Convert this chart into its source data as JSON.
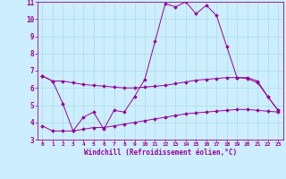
{
  "xlabel": "Windchill (Refroidissement éolien,°C)",
  "background_color": "#cceeff",
  "grid_color": "#aadddd",
  "line_color": "#990099",
  "xlim": [
    -0.5,
    23.5
  ],
  "ylim": [
    3,
    11
  ],
  "xticks": [
    0,
    1,
    2,
    3,
    4,
    5,
    6,
    7,
    8,
    9,
    10,
    11,
    12,
    13,
    14,
    15,
    16,
    17,
    18,
    19,
    20,
    21,
    22,
    23
  ],
  "yticks": [
    3,
    4,
    5,
    6,
    7,
    8,
    9,
    10,
    11
  ],
  "series1_x": [
    0,
    1,
    2,
    3,
    4,
    5,
    6,
    7,
    8,
    9,
    10,
    11,
    12,
    13,
    14,
    15,
    16,
    17,
    18,
    19,
    20,
    21,
    22,
    23
  ],
  "series1_y": [
    6.7,
    6.4,
    6.4,
    6.3,
    6.2,
    6.15,
    6.1,
    6.05,
    6.0,
    6.0,
    6.05,
    6.1,
    6.15,
    6.25,
    6.35,
    6.45,
    6.5,
    6.55,
    6.6,
    6.6,
    6.55,
    6.3,
    5.5,
    4.7
  ],
  "series2_x": [
    0,
    1,
    2,
    3,
    4,
    5,
    6,
    7,
    8,
    9,
    10,
    11,
    12,
    13,
    14,
    15,
    16,
    17,
    18,
    19,
    20,
    21,
    22,
    23
  ],
  "series2_y": [
    6.7,
    6.4,
    5.1,
    3.5,
    4.3,
    4.6,
    3.6,
    4.7,
    4.6,
    5.5,
    6.5,
    8.7,
    10.9,
    10.7,
    11.0,
    10.3,
    10.8,
    10.2,
    8.4,
    6.6,
    6.6,
    6.4,
    5.5,
    4.7
  ],
  "series3_x": [
    0,
    1,
    2,
    3,
    4,
    5,
    6,
    7,
    8,
    9,
    10,
    11,
    12,
    13,
    14,
    15,
    16,
    17,
    18,
    19,
    20,
    21,
    22,
    23
  ],
  "series3_y": [
    3.8,
    3.5,
    3.5,
    3.5,
    3.6,
    3.7,
    3.7,
    3.8,
    3.9,
    4.0,
    4.1,
    4.2,
    4.3,
    4.4,
    4.5,
    4.55,
    4.6,
    4.65,
    4.7,
    4.75,
    4.75,
    4.7,
    4.65,
    4.6
  ]
}
